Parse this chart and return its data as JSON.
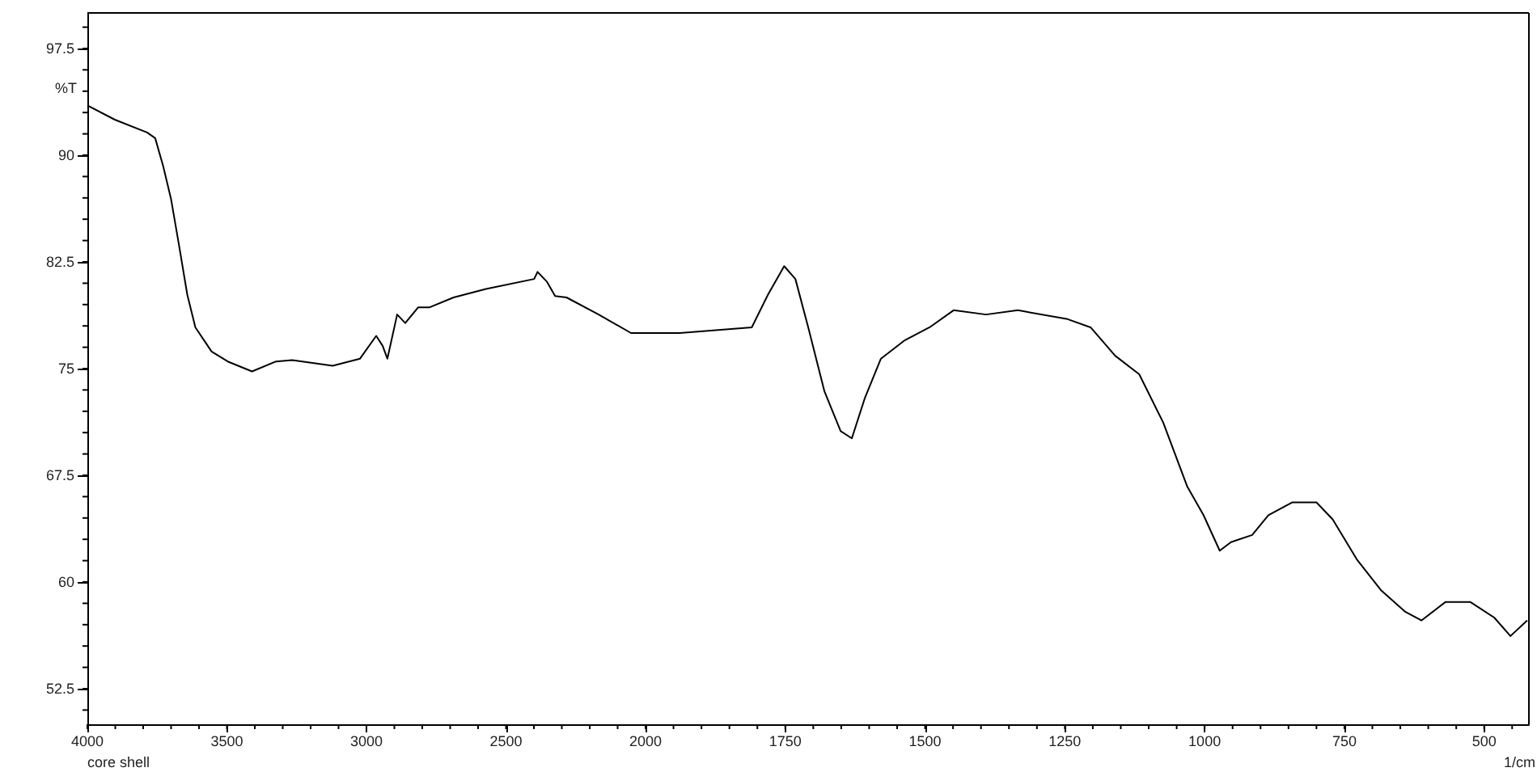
{
  "chart_data": [
    {
      "type": "line",
      "ylabel": "%T",
      "annotations": [
        "core shell"
      ],
      "x": [
        4000,
        3902,
        3786,
        3757,
        3728,
        3700,
        3671,
        3642,
        3613,
        3555,
        3497,
        3410,
        3324,
        3266,
        3121,
        3023,
        2965,
        2942,
        2925,
        2890,
        2861,
        2815,
        2775,
        2688,
        2572,
        2399,
        2387,
        2353,
        2324,
        2283,
        2168,
        2052,
        2000
      ],
      "series": [
        {
          "color": "#000000",
          "values": [
            93.5,
            92.5,
            91.6,
            91.2,
            89.2,
            86.9,
            83.6,
            80.2,
            77.9,
            76.2,
            75.5,
            74.8,
            75.5,
            75.6,
            75.2,
            75.7,
            77.3,
            76.6,
            75.7,
            78.8,
            78.2,
            79.3,
            79.3,
            80.0,
            80.6,
            81.3,
            81.8,
            81.1,
            80.1,
            80.0,
            78.8,
            77.5,
            77.5
          ]
        }
      ],
      "xlim": [
        4000,
        2000
      ],
      "xticks": [
        4000,
        3500,
        3000,
        2500,
        2000
      ],
      "ylim": [
        50,
        100
      ],
      "yticks": [
        52.5,
        60,
        67.5,
        75,
        82.5,
        90,
        97.5
      ],
      "grid": false,
      "marker": "none",
      "line_style": "solid"
    },
    {
      "type": "line",
      "xlabel": "1/cm",
      "x": [
        2000,
        1939,
        1810,
        1781,
        1752,
        1732,
        1709,
        1680,
        1651,
        1631,
        1608,
        1579,
        1536,
        1492,
        1449,
        1391,
        1334,
        1247,
        1204,
        1160,
        1117,
        1074,
        1031,
        1002,
        973,
        953,
        915,
        886,
        843,
        800,
        771,
        728,
        684,
        641,
        612,
        569,
        525,
        482,
        453,
        423
      ],
      "series": [
        {
          "color": "#000000",
          "values": [
            77.5,
            77.5,
            77.9,
            80.2,
            82.2,
            81.3,
            77.9,
            73.4,
            70.6,
            70.1,
            72.9,
            75.7,
            77.0,
            77.9,
            79.1,
            78.8,
            79.1,
            78.5,
            77.9,
            75.9,
            74.6,
            71.2,
            66.7,
            64.7,
            62.2,
            62.8,
            63.3,
            64.7,
            65.6,
            65.6,
            64.4,
            61.6,
            59.4,
            57.9,
            57.3,
            58.6,
            58.6,
            57.5,
            56.2,
            57.3
          ]
        }
      ],
      "xlim": [
        2000,
        420
      ],
      "xticks": [
        1750,
        1500,
        1250,
        1000,
        750,
        500
      ],
      "ylim": [
        50,
        100
      ],
      "tick_labels": "x",
      "grid": false,
      "marker": "none",
      "line_style": "solid"
    }
  ]
}
